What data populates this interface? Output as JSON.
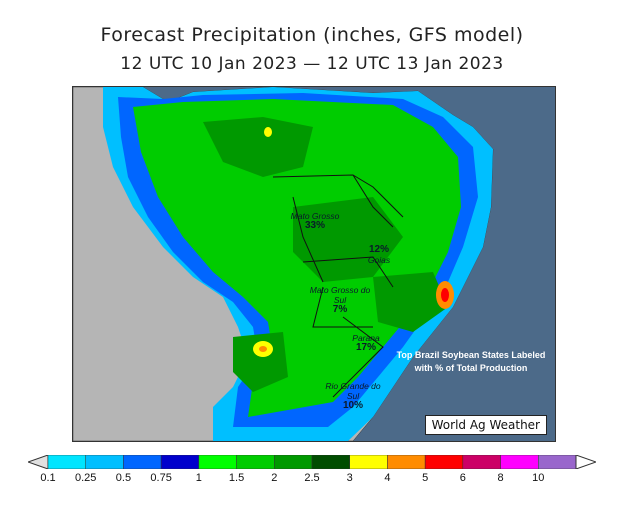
{
  "header": {
    "title": "Forecast Precipitation (inches, GFS model)",
    "subtitle": "12 UTC 10 Jan 2023 — 12 UTC 13 Jan 2023"
  },
  "map": {
    "note": "Top Brazil Soybean States Labeled with % of Total Production",
    "credit": "World Ag Weather",
    "states": [
      {
        "name": "Mato Grosso",
        "pct": "33%"
      },
      {
        "name": "Goias",
        "pct": "12%"
      },
      {
        "name": "Mato Grosso do Sul",
        "pct": "7%"
      },
      {
        "name": "Parana",
        "pct": "17%"
      },
      {
        "name": "Rio Grande do Sul",
        "pct": "10%"
      }
    ]
  },
  "legend": {
    "ticks": [
      "0.1",
      "0.25",
      "0.5",
      "0.75",
      "1",
      "1.5",
      "2",
      "2.5",
      "3",
      "4",
      "5",
      "6",
      "8",
      "10"
    ],
    "colors": [
      "#00e5ff",
      "#00bfff",
      "#0066ff",
      "#0000cc",
      "#00ff00",
      "#00cc00",
      "#009900",
      "#004d00",
      "#ffff00",
      "#ff8c00",
      "#ff0000",
      "#cc0066",
      "#ff00ff",
      "#9966cc"
    ],
    "ocean_color": "#4c6a89",
    "land_dry_color": "#b5b5b5"
  }
}
